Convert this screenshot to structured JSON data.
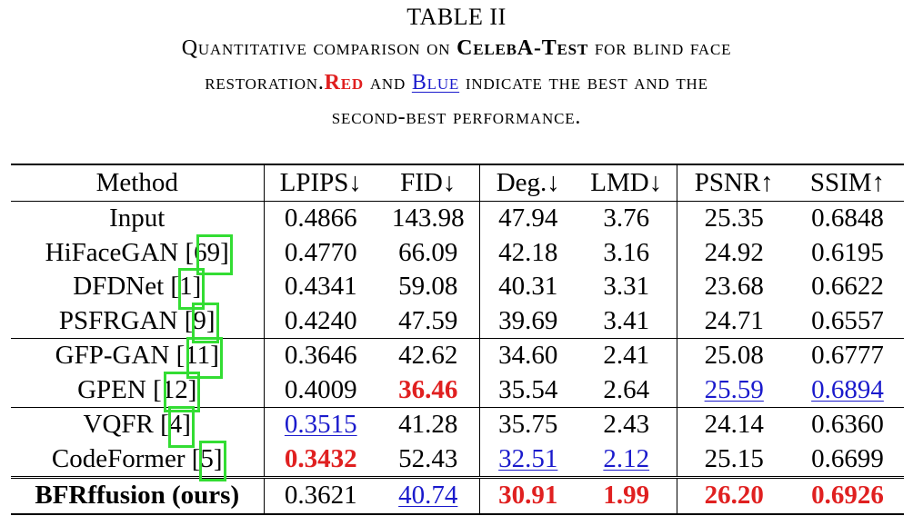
{
  "caption": {
    "label": "TABLE II",
    "line1_pre": "Quantitative comparison on ",
    "line1_dataset": "CelebA-Test",
    "line1_post": " for blind face",
    "line2_pre": "restoration.",
    "line2_red": "Red",
    "line2_mid": " and ",
    "line2_blue": "Blue",
    "line2_post": " indicate the best and the",
    "line3": "second-best performance."
  },
  "table": {
    "headers": [
      "Method",
      "LPIPS↓",
      "FID↓",
      "Deg.↓",
      "LMD↓",
      "PSNR↑",
      "SSIM↑"
    ],
    "rows": [
      {
        "method": "Input",
        "cite": "",
        "group_start": false,
        "values": [
          "0.4866",
          "143.98",
          "47.94",
          "3.76",
          "25.35",
          "0.6848"
        ],
        "styles": [
          "",
          "",
          "",
          "",
          "",
          ""
        ]
      },
      {
        "method": "HiFaceGAN ",
        "cite": "69",
        "group_start": false,
        "values": [
          "0.4770",
          "66.09",
          "42.18",
          "3.16",
          "24.92",
          "0.6195"
        ],
        "styles": [
          "",
          "",
          "",
          "",
          "",
          ""
        ]
      },
      {
        "method": "DFDNet ",
        "cite": "1",
        "group_start": false,
        "values": [
          "0.4341",
          "59.08",
          "40.31",
          "3.31",
          "23.68",
          "0.6622"
        ],
        "styles": [
          "",
          "",
          "",
          "",
          "",
          ""
        ]
      },
      {
        "method": "PSFRGAN ",
        "cite": "9",
        "group_start": false,
        "values": [
          "0.4240",
          "47.59",
          "39.69",
          "3.41",
          "24.71",
          "0.6557"
        ],
        "styles": [
          "",
          "",
          "",
          "",
          "",
          ""
        ]
      },
      {
        "method": "GFP-GAN ",
        "cite": "11",
        "group_start": true,
        "values": [
          "0.3646",
          "42.62",
          "34.60",
          "2.41",
          "25.08",
          "0.6777"
        ],
        "styles": [
          "",
          "",
          "",
          "",
          "",
          ""
        ]
      },
      {
        "method": "GPEN ",
        "cite": "12",
        "group_start": false,
        "values": [
          "0.4009",
          "36.46",
          "35.54",
          "2.64",
          "25.59",
          "0.6894"
        ],
        "styles": [
          "",
          "red",
          "",
          "",
          "blue",
          "blue"
        ]
      },
      {
        "method": "VQFR ",
        "cite": "4",
        "group_start": true,
        "values": [
          "0.3515",
          "41.28",
          "35.75",
          "2.43",
          "24.14",
          "0.6360"
        ],
        "styles": [
          "blue",
          "",
          "",
          "",
          "",
          ""
        ]
      },
      {
        "method": "CodeFormer ",
        "cite": "5",
        "group_start": false,
        "values": [
          "0.3432",
          "52.43",
          "32.51",
          "2.12",
          "25.15",
          "0.6699"
        ],
        "styles": [
          "red",
          "",
          "blue",
          "blue",
          "",
          ""
        ]
      },
      {
        "method": "BFRffusion (ours)",
        "cite": "",
        "group_start": true,
        "final": true,
        "bold_method": true,
        "values": [
          "0.3621",
          "40.74",
          "30.91",
          "1.99",
          "26.20",
          "0.6926"
        ],
        "styles": [
          "",
          "blue",
          "red",
          "red",
          "red",
          "red"
        ]
      }
    ]
  }
}
